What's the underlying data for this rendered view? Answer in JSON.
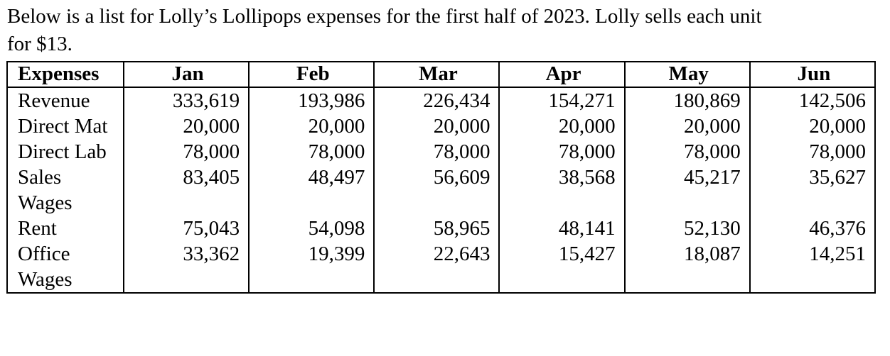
{
  "intro_line1": "Below is a list for Lolly’s Lollipops expenses for the first half of 2023.  Lolly sells each unit",
  "intro_line2": "for $13.",
  "table": {
    "headers": [
      "Expenses",
      "Jan",
      "Feb",
      "Mar",
      "Apr",
      "May",
      "Jun"
    ],
    "rows": [
      {
        "label": "Revenue",
        "values": [
          "333,619",
          "193,986",
          "226,434",
          "154,271",
          "180,869",
          "142,506"
        ]
      },
      {
        "label": "Direct Mat",
        "values": [
          "20,000",
          "20,000",
          "20,000",
          "20,000",
          "20,000",
          "20,000"
        ]
      },
      {
        "label": "Direct Lab",
        "values": [
          "78,000",
          "78,000",
          "78,000",
          "78,000",
          "78,000",
          "78,000"
        ]
      },
      {
        "label": "Sales Wages",
        "values": [
          "83,405",
          "48,497",
          "56,609",
          "38,568",
          "45,217",
          "35,627"
        ]
      },
      {
        "label": "Rent",
        "values": [
          "75,043",
          "54,098",
          "58,965",
          "48,141",
          "52,130",
          "46,376"
        ]
      },
      {
        "label": "Office Wages",
        "values": [
          "33,362",
          "19,399",
          "22,643",
          "15,427",
          "18,087",
          "14,251"
        ]
      }
    ]
  }
}
